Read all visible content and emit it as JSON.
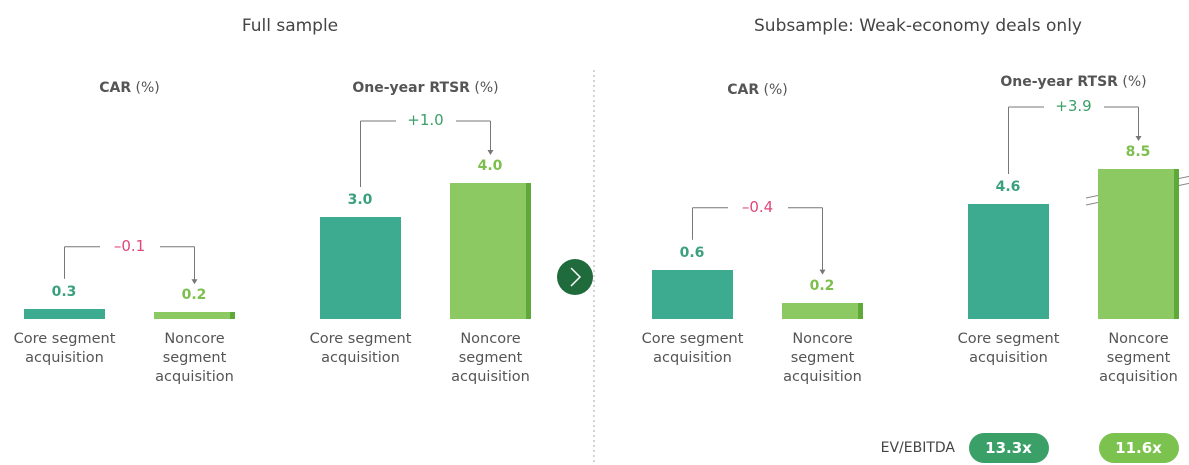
{
  "sections": [
    {
      "title": "Full sample"
    },
    {
      "title": "Subsample: Weak-economy deals only"
    }
  ],
  "chart_data": [
    {
      "type": "bar",
      "title": "CAR",
      "subtitle": "(%)",
      "categories": [
        "Core segment acquisition",
        "Noncore segment acquisition"
      ],
      "values": [
        0.3,
        0.2
      ],
      "value_labels": [
        "0.3",
        "0.2"
      ],
      "colors": [
        "#3dab8f",
        "#8cc963"
      ],
      "annotation": "–0.1",
      "annotation_color": "#e0457b"
    },
    {
      "type": "bar",
      "title": "One-year RTSR",
      "subtitle": "(%)",
      "categories": [
        "Core segment acquisition",
        "Noncore segment acquisition"
      ],
      "values": [
        3.0,
        4.0
      ],
      "value_labels": [
        "3.0",
        "4.0"
      ],
      "colors": [
        "#3dab8f",
        "#8cc963"
      ],
      "annotation": "+1.0",
      "annotation_color": "#3aa068"
    },
    {
      "type": "bar",
      "title": "CAR",
      "subtitle": "(%)",
      "categories": [
        "Core segment acquisition",
        "Noncore segment acquisition"
      ],
      "values": [
        0.6,
        0.2
      ],
      "value_labels": [
        "0.6",
        "0.2"
      ],
      "colors": [
        "#3dab8f",
        "#8cc963"
      ],
      "annotation": "–0.4",
      "annotation_color": "#e0457b"
    },
    {
      "type": "bar",
      "title": "One-year RTSR",
      "subtitle": "(%)",
      "categories": [
        "Core segment acquisition",
        "Noncore segment acquisition"
      ],
      "values": [
        4.6,
        8.5
      ],
      "value_labels": [
        "4.6",
        "8.5"
      ],
      "colors": [
        "#3dab8f",
        "#8cc963"
      ],
      "annotation": "+3.9",
      "annotation_color": "#3aa068",
      "axis_break": true,
      "ev_ebitda": {
        "label": "EV/EBITDA",
        "pills": [
          "13.3x",
          "11.6x"
        ],
        "pill_colors": [
          "#3aa068",
          "#7cc24f"
        ]
      }
    }
  ]
}
